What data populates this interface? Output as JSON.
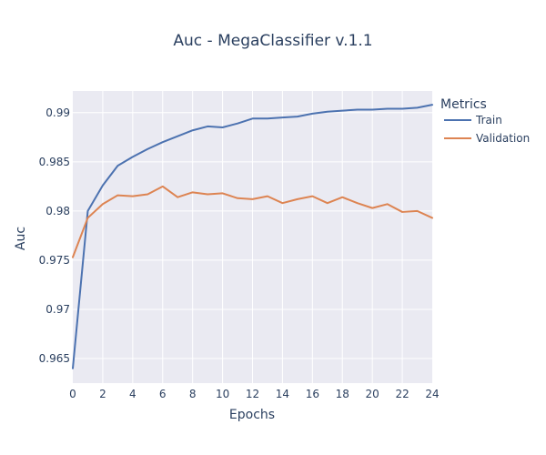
{
  "chart_data": {
    "type": "line",
    "title": "Auc - MegaClassifier v.1.1",
    "xlabel": "Epochs",
    "ylabel": "Auc",
    "xlim": [
      0,
      24
    ],
    "ylim": [
      0.9625,
      0.9922
    ],
    "xticks": [
      0,
      2,
      4,
      6,
      8,
      10,
      12,
      14,
      16,
      18,
      20,
      22,
      24
    ],
    "yticks": [
      0.965,
      0.97,
      0.975,
      0.98,
      0.985,
      0.99
    ],
    "ytick_labels": [
      "0.965",
      "0.97",
      "0.975",
      "0.98",
      "0.985",
      "0.99"
    ],
    "grid": true,
    "legend_title": "Metrics",
    "legend_position": "right",
    "x": [
      0,
      1,
      2,
      3,
      4,
      5,
      6,
      7,
      8,
      9,
      10,
      11,
      12,
      13,
      14,
      15,
      16,
      17,
      18,
      19,
      20,
      21,
      22,
      23,
      24
    ],
    "series": [
      {
        "name": "Train",
        "color": "#4c72b0",
        "values": [
          0.964,
          0.98,
          0.9826,
          0.9846,
          0.9855,
          0.9863,
          0.987,
          0.9876,
          0.9882,
          0.9886,
          0.9885,
          0.9889,
          0.9894,
          0.9894,
          0.9895,
          0.9896,
          0.9899,
          0.9901,
          0.9902,
          0.9903,
          0.9903,
          0.9904,
          0.9904,
          0.9905,
          0.9908
        ]
      },
      {
        "name": "Validation",
        "color": "#dd8452",
        "values": [
          0.9753,
          0.9793,
          0.9807,
          0.9816,
          0.9815,
          0.9817,
          0.9825,
          0.9814,
          0.9819,
          0.9817,
          0.9818,
          0.9813,
          0.9812,
          0.9815,
          0.9808,
          0.9812,
          0.9815,
          0.9808,
          0.9814,
          0.9808,
          0.9803,
          0.9807,
          0.9799,
          0.98,
          0.9793
        ]
      }
    ]
  },
  "colors": {
    "plot_bg": "#eaeaf2",
    "grid": "#ffffff",
    "text": "#2a3f5f"
  }
}
